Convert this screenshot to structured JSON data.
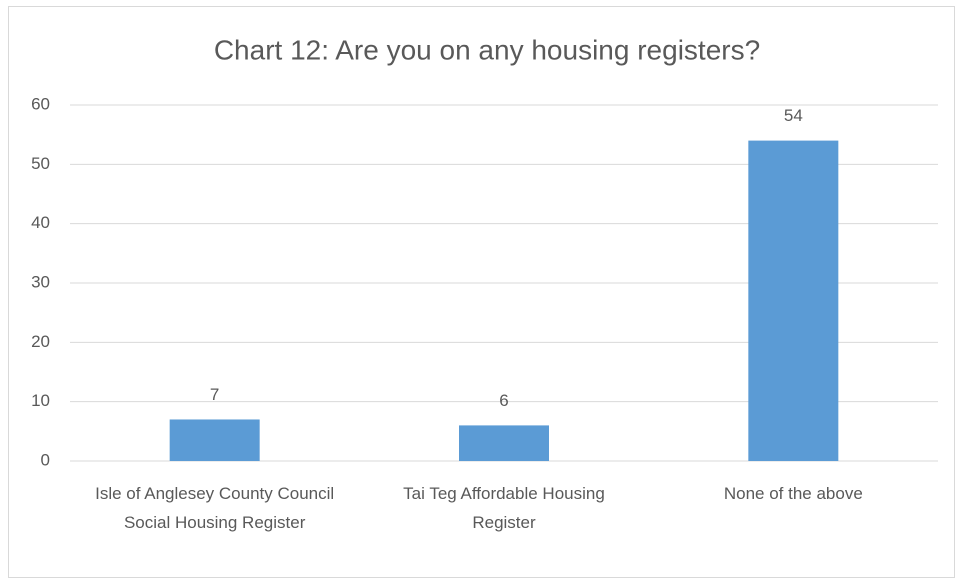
{
  "chart_data": {
    "type": "bar",
    "title": "Chart 12: Are you on any housing registers?",
    "categories": [
      "Isle of Anglesey County Council Social Housing Register",
      "Tai Teg Affordable Housing Register",
      "None of the above"
    ],
    "values": [
      7,
      6,
      54
    ],
    "color": "#5b9bd5",
    "ylim": [
      0,
      60
    ],
    "yticks": [
      0,
      10,
      20,
      30,
      40,
      50,
      60
    ],
    "grid": true
  }
}
